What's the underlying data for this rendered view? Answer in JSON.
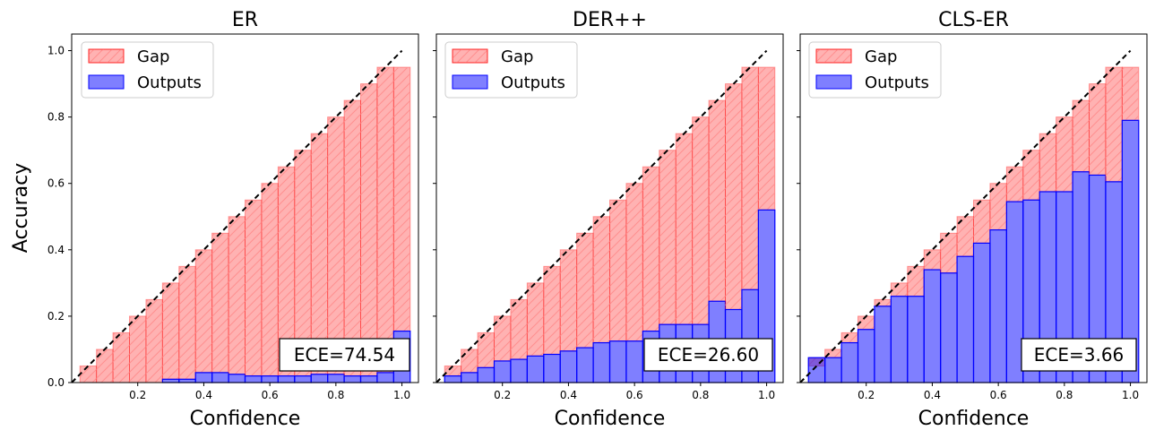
{
  "figure": {
    "ylabel": "Accuracy",
    "xlabel": "Confidence",
    "legend": {
      "gap_label": "Gap",
      "outputs_label": "Outputs"
    },
    "colors": {
      "gap_fill": "#ff0000",
      "gap_edge": "#ff0000",
      "outputs_fill": "#0000ff",
      "outputs_edge": "#0000ff",
      "diagonal": "#000000"
    },
    "x_ticks": [
      "0.2",
      "0.4",
      "0.6",
      "0.8",
      "1.0"
    ],
    "y_ticks": [
      "0.0",
      "0.2",
      "0.4",
      "0.6",
      "0.8",
      "1.0"
    ]
  },
  "chart_data": [
    {
      "type": "bar",
      "title": "ER",
      "xlabel": "Confidence",
      "ylabel": "Accuracy",
      "xlim": [
        0,
        1.05
      ],
      "ylim": [
        0,
        1.05
      ],
      "bin_width": 0.05,
      "bin_centers": [
        0.05,
        0.1,
        0.15,
        0.2,
        0.25,
        0.3,
        0.35,
        0.4,
        0.45,
        0.5,
        0.55,
        0.6,
        0.65,
        0.7,
        0.75,
        0.8,
        0.85,
        0.9,
        0.95,
        1.0
      ],
      "series": [
        {
          "name": "Outputs",
          "values": [
            0,
            0,
            0,
            0,
            0,
            0.01,
            0.01,
            0.03,
            0.03,
            0.025,
            0.02,
            0.02,
            0.02,
            0.02,
            0.025,
            0.025,
            0.02,
            0.02,
            0.03,
            0.155
          ]
        },
        {
          "name": "Gap",
          "values": [
            0.05,
            0.1,
            0.15,
            0.2,
            0.25,
            0.3,
            0.35,
            0.4,
            0.45,
            0.5,
            0.55,
            0.6,
            0.65,
            0.7,
            0.75,
            0.8,
            0.85,
            0.9,
            0.95,
            0.95
          ]
        }
      ],
      "ece_label": "ECE=74.54"
    },
    {
      "type": "bar",
      "title": "DER++",
      "xlabel": "Confidence",
      "ylabel": "",
      "xlim": [
        0,
        1.05
      ],
      "ylim": [
        0,
        1.05
      ],
      "bin_width": 0.05,
      "bin_centers": [
        0.05,
        0.1,
        0.15,
        0.2,
        0.25,
        0.3,
        0.35,
        0.4,
        0.45,
        0.5,
        0.55,
        0.6,
        0.65,
        0.7,
        0.75,
        0.8,
        0.85,
        0.9,
        0.95,
        1.0
      ],
      "series": [
        {
          "name": "Outputs",
          "values": [
            0.02,
            0.03,
            0.045,
            0.065,
            0.07,
            0.08,
            0.085,
            0.095,
            0.105,
            0.12,
            0.125,
            0.125,
            0.155,
            0.175,
            0.175,
            0.175,
            0.245,
            0.22,
            0.28,
            0.52
          ]
        },
        {
          "name": "Gap",
          "values": [
            0.05,
            0.1,
            0.15,
            0.2,
            0.25,
            0.3,
            0.35,
            0.4,
            0.45,
            0.5,
            0.55,
            0.6,
            0.65,
            0.7,
            0.75,
            0.8,
            0.85,
            0.9,
            0.95,
            0.95
          ]
        }
      ],
      "ece_label": "ECE=26.60"
    },
    {
      "type": "bar",
      "title": "CLS-ER",
      "xlabel": "Confidence",
      "ylabel": "",
      "xlim": [
        0,
        1.05
      ],
      "ylim": [
        0,
        1.05
      ],
      "bin_width": 0.05,
      "bin_centers": [
        0.05,
        0.1,
        0.15,
        0.2,
        0.25,
        0.3,
        0.35,
        0.4,
        0.45,
        0.5,
        0.55,
        0.6,
        0.65,
        0.7,
        0.75,
        0.8,
        0.85,
        0.9,
        0.95,
        1.0
      ],
      "series": [
        {
          "name": "Outputs",
          "values": [
            0.075,
            0.075,
            0.12,
            0.16,
            0.23,
            0.26,
            0.26,
            0.34,
            0.33,
            0.38,
            0.42,
            0.46,
            0.545,
            0.55,
            0.575,
            0.575,
            0.635,
            0.625,
            0.605,
            0.79
          ]
        },
        {
          "name": "Gap",
          "values": [
            0.05,
            0.1,
            0.15,
            0.2,
            0.25,
            0.3,
            0.35,
            0.4,
            0.45,
            0.5,
            0.55,
            0.6,
            0.65,
            0.7,
            0.75,
            0.8,
            0.85,
            0.9,
            0.95,
            0.95
          ]
        }
      ],
      "ece_label": "ECE=3.66"
    }
  ]
}
